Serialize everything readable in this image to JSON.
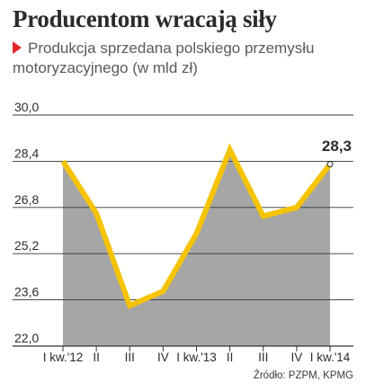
{
  "header": {
    "title": "Producentom wracają siły",
    "subtitle": "Produkcja sprzedana polskiego przemysłu motoryzacyjnego (w mld zł)"
  },
  "footer": {
    "source": "Źródło: PZPM, KPMG"
  },
  "colors": {
    "line": "#f5c400",
    "area": "#a6a6a6",
    "grid": "#333333",
    "accent": "#e0262a"
  },
  "chart_data": {
    "type": "area",
    "title": "Producentom wracają siły",
    "subtitle": "Produkcja sprzedana polskiego przemysłu motoryzacyjnego (w mld zł)",
    "xlabel": "",
    "ylabel": "",
    "categories": [
      "I kw.'12",
      "II",
      "III",
      "IV",
      "I kw.'13",
      "II",
      "III",
      "IV",
      "I kw.'14"
    ],
    "values": [
      28.4,
      26.6,
      23.4,
      23.9,
      25.9,
      28.8,
      26.5,
      26.8,
      28.3
    ],
    "ylim": [
      22.0,
      30.0
    ],
    "yticks": [
      "30,0",
      "28,4",
      "26,8",
      "25,2",
      "23,6",
      "22,0"
    ],
    "ytick_values": [
      30.0,
      28.4,
      26.8,
      25.2,
      23.6,
      22.0
    ],
    "x_tick_labels": [
      "I kw.'12",
      "II",
      "III",
      "IV",
      "I kw.'13",
      "II",
      "III",
      "IV",
      "I kw.'14"
    ],
    "data_label": "28,3",
    "grid": true,
    "legend": "none"
  }
}
